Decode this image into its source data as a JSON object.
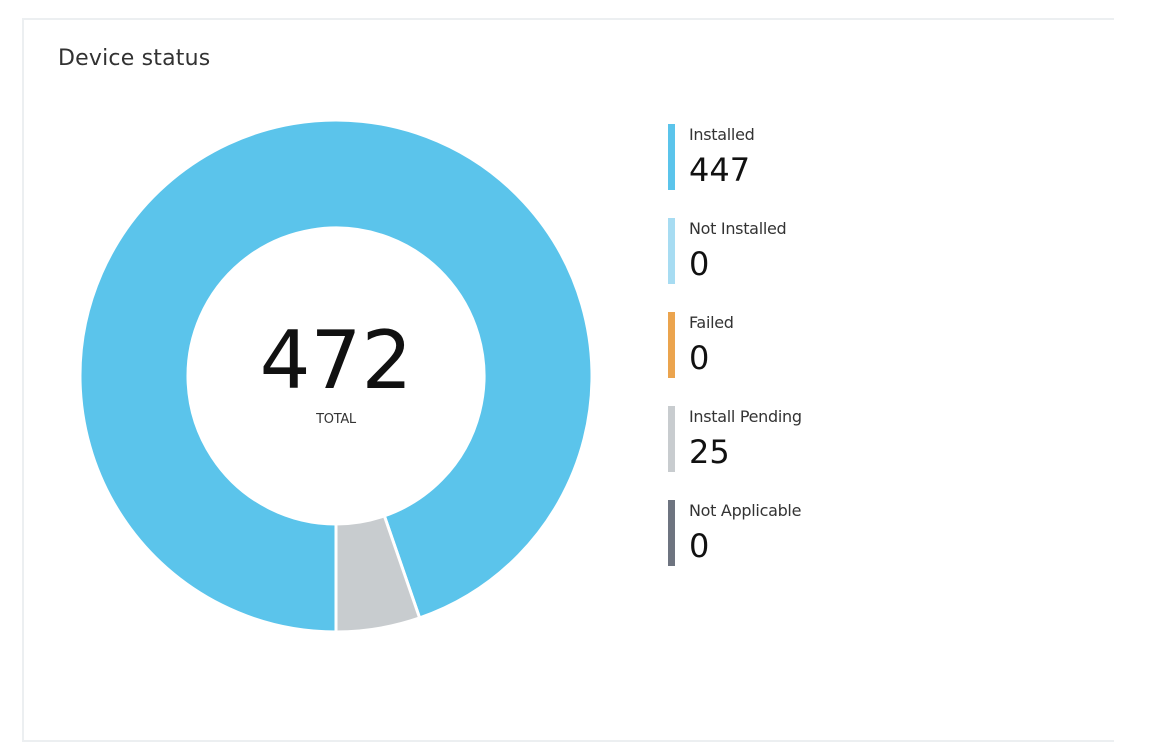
{
  "card": {
    "title": "Device status"
  },
  "chart_data": {
    "type": "pie",
    "donut": true,
    "center_value": "472",
    "center_label": "TOTAL",
    "legend_position": "right",
    "series": [
      {
        "name": "Installed",
        "value": 447,
        "color": "#5bc4eb"
      },
      {
        "name": "Not Installed",
        "value": 0,
        "color": "#a7dcf2"
      },
      {
        "name": "Failed",
        "value": 0,
        "color": "#eba44e"
      },
      {
        "name": "Install Pending",
        "value": 25,
        "color": "#c8cccf"
      },
      {
        "name": "Not Applicable",
        "value": 0,
        "color": "#6e7480"
      }
    ]
  }
}
